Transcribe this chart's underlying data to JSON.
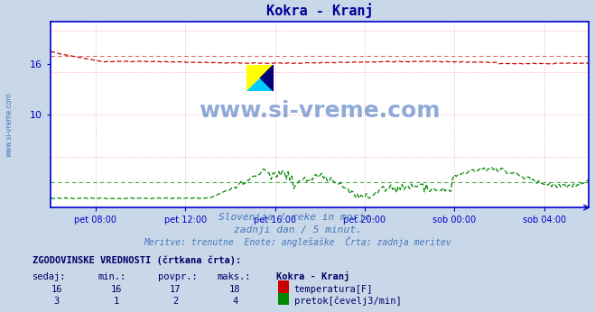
{
  "title": "Kokra - Kranj",
  "title_color": "#000099",
  "bg_color": "#c8d8e8",
  "plot_bg_color": "#ffffff",
  "grid_color": "#ffaaaa",
  "grid_style": "dotted",
  "axis_color": "#0000cc",
  "xlim": [
    0,
    288
  ],
  "ylim": [
    -1.0,
    21.0
  ],
  "yticks": [
    10,
    16
  ],
  "ytick_labels": [
    "10",
    "16"
  ],
  "xtick_positions": [
    24,
    72,
    120,
    168,
    216,
    264
  ],
  "xtick_labels": [
    "pet 08:00",
    "pet 12:00",
    "pet 16:00",
    "pet 20:00",
    "sob 00:00",
    "sob 04:00"
  ],
  "temp_color": "#cc0000",
  "flow_color": "#008800",
  "temp_avg": 17.0,
  "flow_avg": 2.0,
  "watermark": "www.si-vreme.com",
  "watermark_color": "#3366bb",
  "subtitle1": "Slovenija / reke in morje.",
  "subtitle2": "zadnji dan / 5 minut.",
  "subtitle3": "Meritve: trenutne  Enote: anglešaške  Črta: zadnja meritev",
  "subtitle_color": "#4477bb",
  "table_header": "ZGODOVINSKE VREDNOSTI (črtkana črta):",
  "table_header_color": "#000066",
  "col_headers": [
    "sedaj:",
    "min.:",
    "povpr.:",
    "maks.:",
    "Kokra - Kranj"
  ],
  "row1_vals": [
    "16",
    "16",
    "17",
    "18"
  ],
  "row1_label": "temperatura[F]",
  "row2_vals": [
    "3",
    "1",
    "2",
    "4"
  ],
  "row2_label": "pretok[čevelj3/min]",
  "table_color": "#000066",
  "left_label": "www.si-vreme.com",
  "left_label_color": "#4477bb",
  "logo_colors": [
    "#ffff00",
    "#00ccff",
    "#000077"
  ]
}
